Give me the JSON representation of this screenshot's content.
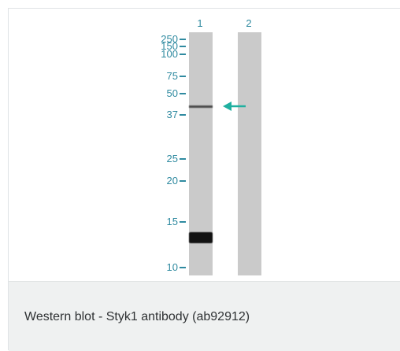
{
  "figure": {
    "lanes": [
      {
        "number": "1"
      },
      {
        "number": "2"
      }
    ],
    "markers": [
      "250",
      "150",
      "100",
      "75",
      "50",
      "37",
      "25",
      "20",
      "15",
      "10"
    ],
    "colors": {
      "marker": "#2f8aa0",
      "arrow": "#1fb0a0",
      "lane": "#cacaca"
    },
    "arrow_icon": "left-arrow"
  },
  "caption": {
    "text": "Western blot - Styk1 antibody (ab92912)"
  }
}
